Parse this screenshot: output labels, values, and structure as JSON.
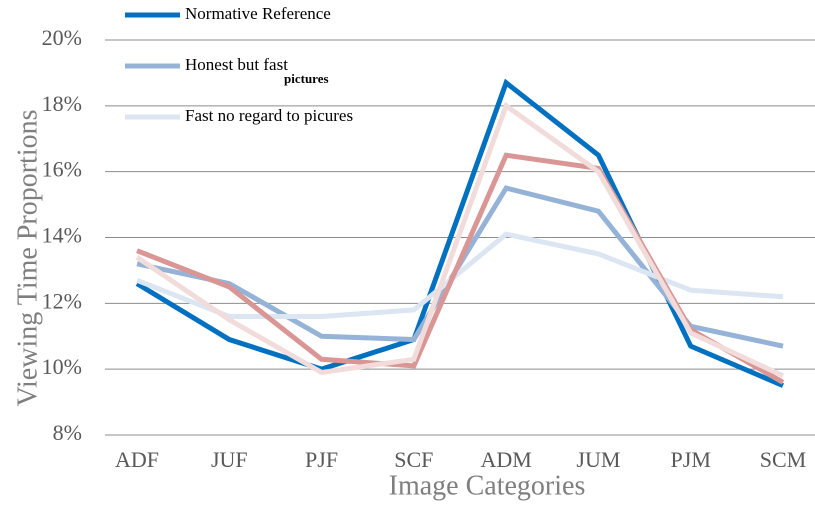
{
  "chart_data": {
    "type": "line",
    "x_label": "Image Categories",
    "y_label": "Viewing Time Proportions",
    "annotation": "pictures",
    "categories": [
      "ADF",
      "JUF",
      "PJF",
      "SCF",
      "ADM",
      "JUM",
      "PJM",
      "SCM"
    ],
    "series": [
      {
        "name": "Normative Reference",
        "color": "#0070c0",
        "values": [
          12.6,
          10.9,
          10.0,
          10.9,
          18.7,
          16.5,
          10.7,
          9.5
        ]
      },
      {
        "name": "Honest but fast",
        "color": "#95b3d7",
        "values": [
          13.2,
          12.6,
          11.0,
          10.9,
          15.5,
          14.8,
          11.3,
          10.7
        ]
      },
      {
        "name": "Fast no regard to picures",
        "color": "#dce6f2",
        "values": [
          12.7,
          11.6,
          11.6,
          11.8,
          14.1,
          13.5,
          12.4,
          12.2
        ]
      },
      {
        "color": "#d99694",
        "values": [
          13.6,
          12.5,
          10.3,
          10.1,
          16.5,
          16.1,
          11.2,
          9.6
        ]
      },
      {
        "color": "#f2dcdb",
        "values": [
          13.4,
          11.5,
          9.9,
          10.3,
          18.0,
          16.0,
          11.1,
          9.8
        ]
      }
    ],
    "ylim": [
      8,
      20
    ],
    "yticks": [
      {
        "value": 8,
        "label": "8%"
      },
      {
        "value": 10,
        "label": "10%"
      },
      {
        "value": 12,
        "label": "12%"
      },
      {
        "value": 14,
        "label": "14%"
      },
      {
        "value": 16,
        "label": "16%"
      },
      {
        "value": 18,
        "label": "18%"
      },
      {
        "value": 20,
        "label": "20%"
      }
    ],
    "grid": true
  }
}
